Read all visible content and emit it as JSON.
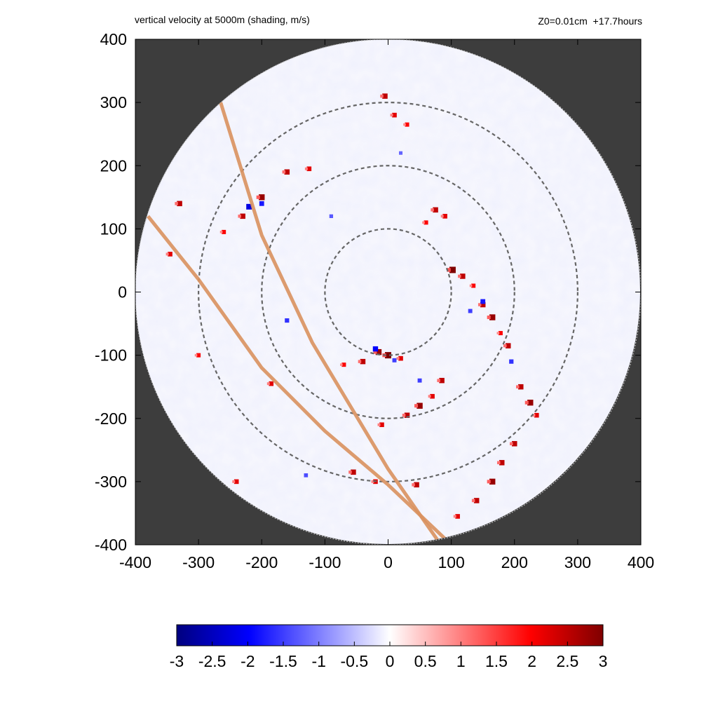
{
  "chart_data": {
    "type": "heatmap",
    "title": "vertical velocity at 5000m (shading, m/s)",
    "subtitle": "Z0=0.01cm  +17.7hours",
    "xlabel": "",
    "ylabel": "",
    "xlim": [
      -400,
      400
    ],
    "ylim": [
      -400,
      400
    ],
    "x_ticks": [
      "-400",
      "-300",
      "-200",
      "-100",
      "0",
      "100",
      "200",
      "300",
      "400"
    ],
    "y_ticks": [
      "400",
      "300",
      "200",
      "100",
      "0",
      "-100",
      "-200",
      "-300",
      "-400"
    ],
    "domain_radius": 400,
    "range_rings_radius": [
      100,
      200,
      300
    ],
    "track_lines": [
      [
        [
          -265,
          300
        ],
        [
          -200,
          90
        ],
        [
          -120,
          -80
        ],
        [
          0,
          -280
        ],
        [
          80,
          -395
        ]
      ],
      [
        [
          -380,
          120
        ],
        [
          -300,
          20
        ],
        [
          -200,
          -120
        ],
        [
          -100,
          -220
        ],
        [
          0,
          -305
        ],
        [
          95,
          -395
        ]
      ]
    ],
    "colorbar": {
      "min": -3,
      "max": 3,
      "ticks": [
        "-3",
        "-2.5",
        "-2",
        "-1.5",
        "-1",
        "-0.5",
        "0",
        "0.5",
        "1",
        "1.5",
        "2",
        "2.5",
        "3"
      ],
      "stops": [
        "#00007f",
        "#0000ff",
        "#ffffff",
        "#ff0000",
        "#7f0000"
      ]
    },
    "cells_updrafts": [
      [
        102,
        35,
        3
      ],
      [
        118,
        25,
        2.5
      ],
      [
        135,
        10,
        2
      ],
      [
        150,
        -20,
        2.5
      ],
      [
        165,
        -40,
        2.8
      ],
      [
        178,
        -65,
        2
      ],
      [
        190,
        -85,
        2.5
      ],
      [
        0,
        -100,
        3
      ],
      [
        -15,
        -95,
        2.8
      ],
      [
        20,
        -105,
        2.2
      ],
      [
        -40,
        -110,
        2.5
      ],
      [
        -70,
        -115,
        2
      ],
      [
        85,
        -140,
        2.5
      ],
      [
        70,
        -165,
        2.2
      ],
      [
        50,
        -180,
        2.8
      ],
      [
        30,
        -195,
        2.5
      ],
      [
        -10,
        -210,
        2.2
      ],
      [
        210,
        -150,
        2.5
      ],
      [
        225,
        -175,
        2.8
      ],
      [
        235,
        -195,
        2.2
      ],
      [
        200,
        -240,
        2.5
      ],
      [
        180,
        -270,
        2.5
      ],
      [
        165,
        -300,
        2.8
      ],
      [
        140,
        -330,
        2.5
      ],
      [
        110,
        -355,
        2.2
      ],
      [
        -230,
        120,
        2.5
      ],
      [
        -200,
        150,
        2.8
      ],
      [
        -160,
        190,
        2.5
      ],
      [
        -125,
        195,
        2.2
      ],
      [
        -260,
        95,
        2
      ],
      [
        -330,
        140,
        2.5
      ],
      [
        -345,
        60,
        2.2
      ],
      [
        -5,
        310,
        2.5
      ],
      [
        10,
        280,
        2.2
      ],
      [
        30,
        265,
        2
      ],
      [
        75,
        130,
        2.5
      ],
      [
        90,
        120,
        2.2
      ],
      [
        60,
        110,
        2
      ],
      [
        -55,
        -285,
        2.5
      ],
      [
        -20,
        -300,
        2.2
      ],
      [
        45,
        -305,
        2.5
      ],
      [
        -185,
        -145,
        2.2
      ],
      [
        -240,
        -300,
        2.2
      ],
      [
        -300,
        -100,
        2
      ]
    ],
    "cells_downdrafts": [
      [
        -220,
        135,
        -2.2
      ],
      [
        -200,
        140,
        -1.8
      ],
      [
        150,
        -15,
        -1.8
      ],
      [
        130,
        -30,
        -1.5
      ],
      [
        -20,
        -90,
        -2
      ],
      [
        10,
        -108,
        -1.5
      ],
      [
        50,
        -140,
        -1.5
      ],
      [
        -160,
        -45,
        -1.6
      ],
      [
        -130,
        -290,
        -1.4
      ],
      [
        20,
        220,
        -1.2
      ],
      [
        -90,
        120,
        -1.3
      ],
      [
        195,
        -110,
        -1.6
      ]
    ]
  }
}
